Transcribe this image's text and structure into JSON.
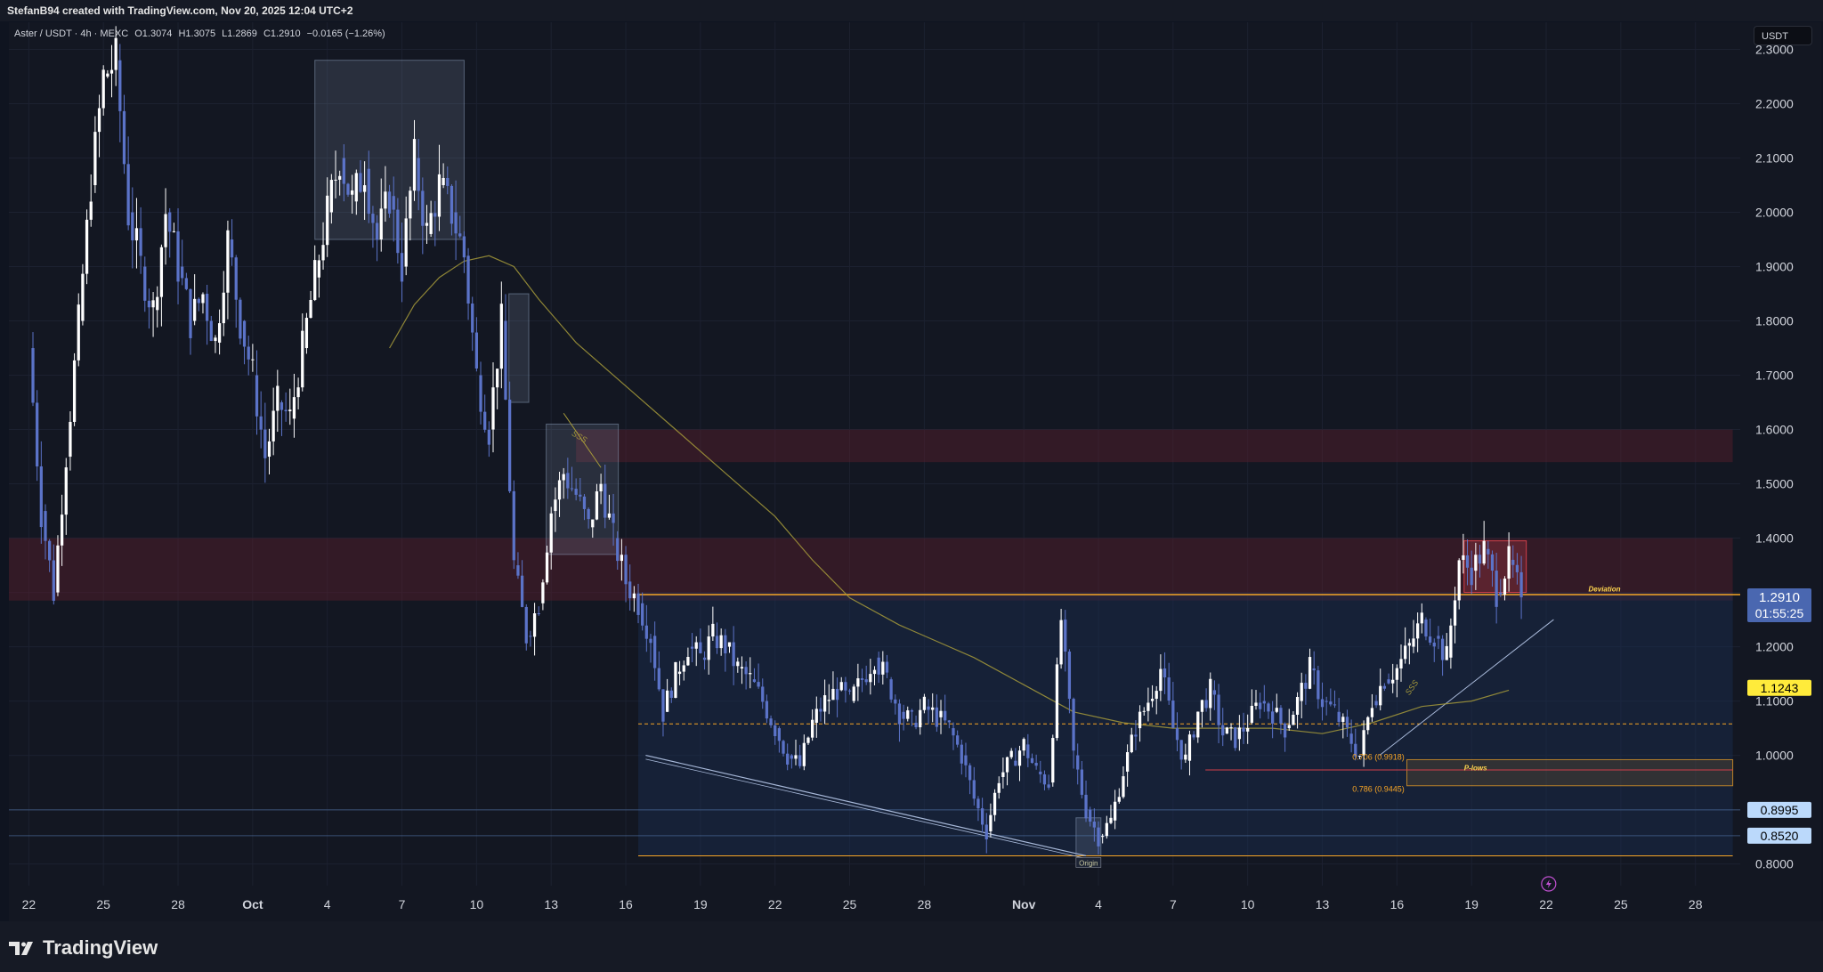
{
  "header": {
    "credit": "StefanB94 created with TradingView.com, Nov 20, 2025 12:04 UTC+2"
  },
  "legend": {
    "symbol": "Aster / USDT · 4h · MEXC",
    "open": "O1.3074",
    "high": "H1.3075",
    "low": "L1.2869",
    "close": "C1.2910",
    "change": "−0.0165 (−1.26%)"
  },
  "currency_button": "USDT",
  "brand": "TradingView",
  "colors": {
    "background": "#131722",
    "candle_up": "#ffffff",
    "candle_down": "#5b73c8",
    "ma_line": "#a69a3a",
    "resistance_zone": "#5a1f2c",
    "range_box": "#1a2e52",
    "fib_orange": "#f7a525",
    "price_label": "#4a67b0",
    "ma_label": "#ffeb3b",
    "level_label": "#bbd9fb",
    "red_box": "#d0404a",
    "axis_text": "#d1d4dc",
    "grid": "#1c2130"
  },
  "chart_data": {
    "type": "candlestick",
    "symbol": "Aster / USDT",
    "interval": "4h",
    "exchange": "MEXC",
    "ylim": [
      0.76,
      2.35
    ],
    "y_ticks": [
      "0.8000",
      "0.9000",
      "1.0000",
      "1.1000",
      "1.2000",
      "1.3000",
      "1.4000",
      "1.5000",
      "1.6000",
      "1.7000",
      "1.8000",
      "1.9000",
      "2.0000",
      "2.1000",
      "2.2000",
      "2.3000"
    ],
    "x_ticks": [
      "22",
      "25",
      "28",
      "Oct",
      "4",
      "7",
      "10",
      "13",
      "16",
      "19",
      "22",
      "25",
      "28",
      "Nov",
      "4",
      "7",
      "10",
      "13",
      "16",
      "19",
      "22",
      "25",
      "28"
    ],
    "x_tick_days": [
      0,
      3,
      6,
      9,
      12,
      15,
      18,
      21,
      24,
      27,
      30,
      33,
      36,
      40,
      43,
      46,
      49,
      52,
      55,
      58,
      61,
      64,
      67
    ],
    "xlim_days": [
      -0.8,
      68.8
    ],
    "daily_closes": [
      [
        0,
        1.75
      ],
      [
        0.5,
        1.45
      ],
      [
        1,
        1.3
      ],
      [
        1.5,
        1.55
      ],
      [
        2,
        1.8
      ],
      [
        2.5,
        2.05
      ],
      [
        3,
        2.25
      ],
      [
        3.5,
        2.28
      ],
      [
        4,
        2.0
      ],
      [
        4.5,
        1.9
      ],
      [
        5,
        1.82
      ],
      [
        5.5,
        2.0
      ],
      [
        6,
        1.9
      ],
      [
        6.5,
        1.8
      ],
      [
        7,
        1.85
      ],
      [
        7.5,
        1.76
      ],
      [
        8,
        1.95
      ],
      [
        8.5,
        1.8
      ],
      [
        9,
        1.7
      ],
      [
        9.5,
        1.55
      ],
      [
        10,
        1.65
      ],
      [
        10.5,
        1.62
      ],
      [
        11,
        1.75
      ],
      [
        11.5,
        1.88
      ],
      [
        12,
        2.0
      ],
      [
        12.5,
        2.1
      ],
      [
        13,
        2.02
      ],
      [
        13.5,
        2.08
      ],
      [
        14,
        1.95
      ],
      [
        14.5,
        2.03
      ],
      [
        15,
        1.9
      ],
      [
        15.5,
        2.1
      ],
      [
        16,
        1.96
      ],
      [
        16.5,
        2.05
      ],
      [
        17,
        2.0
      ],
      [
        17.5,
        1.92
      ],
      [
        18,
        1.7
      ],
      [
        18.5,
        1.6
      ],
      [
        19,
        1.8
      ],
      [
        19.5,
        1.35
      ],
      [
        20,
        1.22
      ],
      [
        20.5,
        1.28
      ],
      [
        21,
        1.45
      ],
      [
        21.5,
        1.52
      ],
      [
        22,
        1.48
      ],
      [
        22.5,
        1.42
      ],
      [
        23,
        1.5
      ],
      [
        23.5,
        1.4
      ],
      [
        24,
        1.32
      ],
      [
        24.5,
        1.28
      ],
      [
        25,
        1.22
      ],
      [
        25.5,
        1.08
      ],
      [
        26,
        1.15
      ],
      [
        26.5,
        1.2
      ],
      [
        27,
        1.18
      ],
      [
        27.5,
        1.22
      ],
      [
        28,
        1.2
      ],
      [
        28.5,
        1.16
      ],
      [
        29,
        1.14
      ],
      [
        29.5,
        1.1
      ],
      [
        30,
        1.05
      ],
      [
        30.5,
        1.0
      ],
      [
        31,
        0.98
      ],
      [
        31.5,
        1.06
      ],
      [
        32,
        1.1
      ],
      [
        32.5,
        1.12
      ],
      [
        33,
        1.1
      ],
      [
        33.5,
        1.14
      ],
      [
        34,
        1.18
      ],
      [
        34.5,
        1.14
      ],
      [
        35,
        1.08
      ],
      [
        35.5,
        1.06
      ],
      [
        36,
        1.09
      ],
      [
        36.5,
        1.07
      ],
      [
        37,
        1.05
      ],
      [
        37.5,
        1.0
      ],
      [
        38,
        0.92
      ],
      [
        38.5,
        0.86
      ],
      [
        39,
        0.96
      ],
      [
        39.5,
        0.99
      ],
      [
        40,
        1.02
      ],
      [
        40.5,
        0.97
      ],
      [
        41,
        0.95
      ],
      [
        41.5,
        1.25
      ],
      [
        42,
        1.0
      ],
      [
        42.5,
        0.9
      ],
      [
        43,
        0.85
      ],
      [
        43.5,
        0.88
      ],
      [
        44,
        0.97
      ],
      [
        44.5,
        1.05
      ],
      [
        45,
        1.1
      ],
      [
        45.5,
        1.16
      ],
      [
        46,
        1.05
      ],
      [
        46.5,
        0.99
      ],
      [
        47,
        1.08
      ],
      [
        47.5,
        1.12
      ],
      [
        48,
        1.04
      ],
      [
        48.5,
        1.03
      ],
      [
        49,
        1.06
      ],
      [
        49.5,
        1.1
      ],
      [
        50,
        1.08
      ],
      [
        50.5,
        1.05
      ],
      [
        51,
        1.1
      ],
      [
        51.5,
        1.16
      ],
      [
        52,
        1.1
      ],
      [
        52.5,
        1.08
      ],
      [
        53,
        1.04
      ],
      [
        53.5,
        1.0
      ],
      [
        54,
        1.1
      ],
      [
        54.5,
        1.14
      ],
      [
        55,
        1.16
      ],
      [
        55.5,
        1.2
      ],
      [
        56,
        1.25
      ],
      [
        56.5,
        1.22
      ],
      [
        57,
        1.18
      ],
      [
        57.5,
        1.36
      ],
      [
        58,
        1.34
      ],
      [
        58.5,
        1.38
      ],
      [
        59,
        1.3
      ],
      [
        59.5,
        1.36
      ],
      [
        60,
        1.291
      ]
    ],
    "moving_average": [
      [
        14.5,
        1.75
      ],
      [
        15.5,
        1.83
      ],
      [
        16.5,
        1.88
      ],
      [
        17.5,
        1.91
      ],
      [
        18.5,
        1.92
      ],
      [
        19.5,
        1.9
      ],
      [
        20.5,
        1.84
      ],
      [
        22,
        1.76
      ],
      [
        24,
        1.68
      ],
      [
        26,
        1.6
      ],
      [
        28,
        1.52
      ],
      [
        30,
        1.44
      ],
      [
        31.5,
        1.36
      ],
      [
        33,
        1.29
      ],
      [
        35,
        1.24
      ],
      [
        36.5,
        1.21
      ],
      [
        38,
        1.18
      ],
      [
        40,
        1.13
      ],
      [
        42,
        1.08
      ],
      [
        44,
        1.06
      ],
      [
        46,
        1.05
      ],
      [
        48,
        1.05
      ],
      [
        50,
        1.05
      ],
      [
        52,
        1.04
      ],
      [
        54,
        1.06
      ],
      [
        56,
        1.09
      ],
      [
        58,
        1.1
      ],
      [
        59.5,
        1.12
      ]
    ],
    "current_price": {
      "value": 1.291,
      "label": "1.2910",
      "countdown": "01:55:25"
    },
    "ma_price": {
      "value": 1.1243,
      "label": "1.1243"
    },
    "levels": [
      {
        "value": 0.8995,
        "label": "0.8995"
      },
      {
        "value": 0.852,
        "label": "0.8520"
      }
    ],
    "zones": [
      {
        "kind": "resistance",
        "x0": -0.8,
        "x1": 68.5,
        "y0": 1.285,
        "y1": 1.4
      },
      {
        "kind": "resistance",
        "x0": 22,
        "x1": 68.5,
        "y0": 1.54,
        "y1": 1.6
      },
      {
        "kind": "range",
        "x0": 24.5,
        "x1": 68.5,
        "y0": 0.815,
        "y1": 1.3
      }
    ],
    "boxes": [
      {
        "x0": 11.5,
        "x1": 17.5,
        "y0": 1.95,
        "y1": 2.28
      },
      {
        "x0": 19.3,
        "x1": 20.1,
        "y0": 1.65,
        "y1": 1.85
      },
      {
        "x0": 20.8,
        "x1": 23.7,
        "y0": 1.37,
        "y1": 1.61
      },
      {
        "x0": 42.1,
        "x1": 43.1,
        "y0": 0.815,
        "y1": 0.885
      }
    ],
    "red_box": {
      "x0": 57.7,
      "x1": 60.2,
      "y0": 1.3,
      "y1": 1.395
    },
    "annotations": {
      "sss_top": "SSS",
      "sss_bottom": "SSS",
      "deviation": "Deviation",
      "origin": "Origin",
      "p_lows": "P-lows",
      "fib_706": "0.706 (0.9918)",
      "fib_786": "0.786 (0.9445)"
    },
    "fib_levels": [
      {
        "value": 0.9918,
        "label": "0.706 (0.9918)"
      },
      {
        "value": 0.9445,
        "label": "0.786 (0.9445)"
      }
    ],
    "grid": true
  }
}
